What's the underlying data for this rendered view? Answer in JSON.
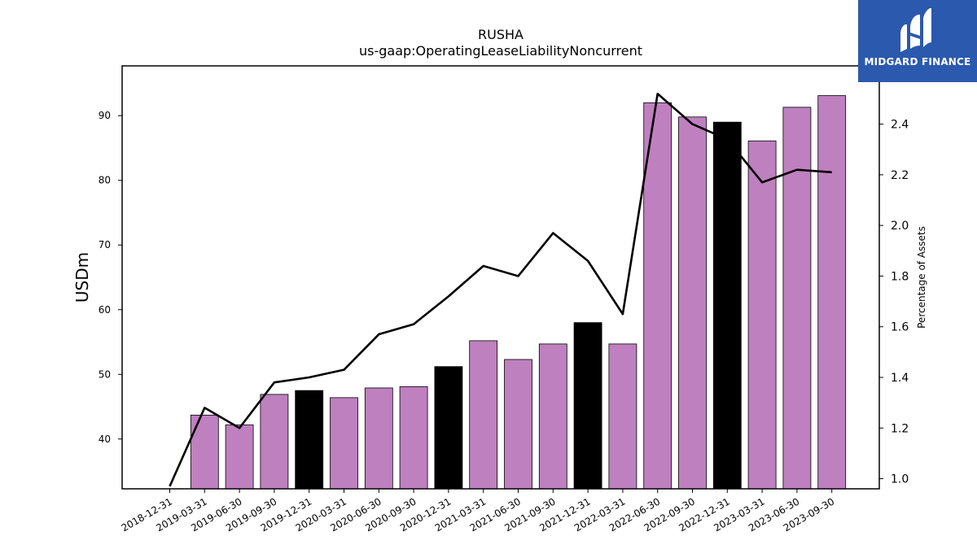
{
  "chart_data": {
    "type": "bar",
    "title": "RUSHA",
    "subtitle": "us-gaap:OperatingLeaseLiabilityNoncurrent",
    "ylabel": "USDm",
    "y2label": "Percentage of Assets",
    "categories": [
      "2018-12-31",
      "2019-03-31",
      "2019-06-30",
      "2019-09-30",
      "2019-12-31",
      "2020-03-31",
      "2020-06-30",
      "2020-09-30",
      "2020-12-31",
      "2021-03-31",
      "2021-06-30",
      "2021-09-30",
      "2021-12-31",
      "2022-03-31",
      "2022-06-30",
      "2022-09-30",
      "2022-12-31",
      "2023-03-31",
      "2023-06-30",
      "2023-09-30"
    ],
    "series": [
      {
        "type": "bar",
        "axis": "left",
        "values": [
          null,
          43.7,
          42.2,
          46.9,
          47.5,
          46.4,
          47.9,
          48.1,
          51.2,
          55.2,
          52.3,
          54.7,
          58.0,
          54.7,
          92.0,
          89.8,
          89.0,
          86.1,
          91.3,
          93.1
        ]
      },
      {
        "type": "line",
        "axis": "right",
        "values": [
          0.97,
          1.28,
          1.2,
          1.38,
          1.4,
          1.43,
          1.57,
          1.61,
          1.72,
          1.84,
          1.8,
          1.97,
          1.86,
          1.65,
          2.52,
          2.4,
          2.34,
          2.17,
          2.22,
          2.21
        ]
      }
    ],
    "bar_colors": {
      "default": "#bf80bf",
      "fiscal_year_end": "#000000"
    },
    "year_end_categories": [
      "2019-12-31",
      "2020-12-31",
      "2021-12-31",
      "2022-12-31"
    ],
    "line_color": "#000000",
    "ylim": [
      32.3,
      97.7
    ],
    "y2lim": [
      0.96,
      2.63
    ],
    "yticks": [
      40,
      50,
      60,
      70,
      80,
      90
    ],
    "y2ticks": [
      1.0,
      1.2,
      1.4,
      1.6,
      1.8,
      2.0,
      2.2,
      2.4
    ],
    "grid": false
  },
  "logo": {
    "name": "MIDGARD FINANCE",
    "background": "#2b59ad"
  }
}
